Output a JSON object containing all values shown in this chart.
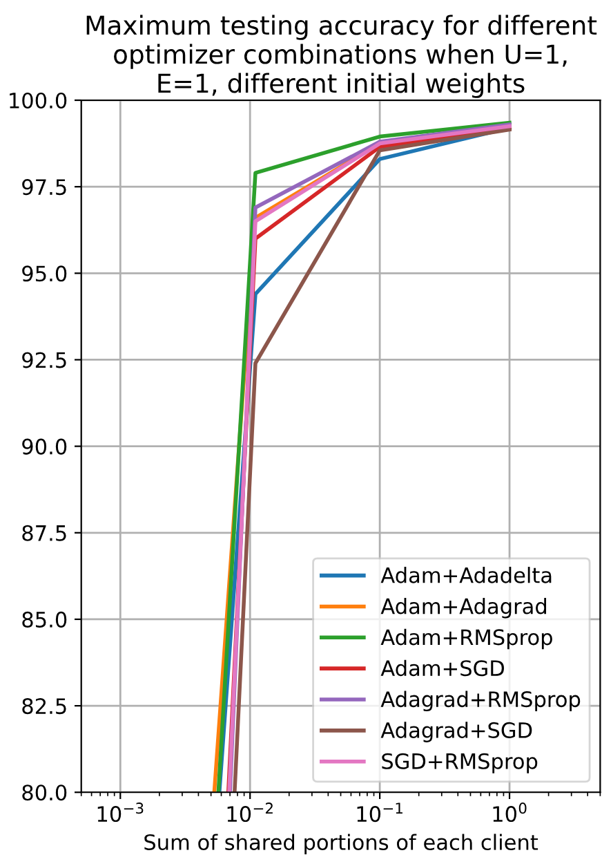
{
  "chart_data": {
    "type": "line",
    "title": "Maximum testing accuracy for different optimizer combinations when U=1, E=1, different initial weights",
    "xlabel": "Sum of shared portions of each client",
    "log": "x",
    "xlim": [
      0.0005,
      5
    ],
    "ylim": [
      80,
      100
    ],
    "xticks": [
      {
        "value": 0.001,
        "label": "10$^{−3}$"
      },
      {
        "value": 0.01,
        "label": "10$^{−2}$"
      },
      {
        "value": 0.1,
        "label": "10$^{−1}$"
      },
      {
        "value": 1,
        "label": "10$^{0}$"
      }
    ],
    "yticks": [
      {
        "value": 80,
        "label": "80.0"
      },
      {
        "value": 82.5,
        "label": "82.5"
      },
      {
        "value": 85,
        "label": "85.0"
      },
      {
        "value": 87.5,
        "label": "87.5"
      },
      {
        "value": 90,
        "label": "90.0"
      },
      {
        "value": 92.5,
        "label": "92.5"
      },
      {
        "value": 95,
        "label": "95.0"
      },
      {
        "value": 97.5,
        "label": "97.5"
      },
      {
        "value": 100,
        "label": "100.0"
      }
    ],
    "grid": true,
    "legend": "bottom right",
    "marker": "none",
    "line_style": "solid",
    "series": [
      {
        "name": "Adam+Adadelta",
        "color": "#1f77b4",
        "x": [
          0.0058,
          0.011,
          0.1,
          1
        ],
        "values": [
          80,
          94.4,
          98.3,
          99.2
        ]
      },
      {
        "name": "Adam+Adagrad",
        "color": "#ff7f0e",
        "x": [
          0.0053,
          0.011,
          0.1,
          1
        ],
        "values": [
          80,
          96.6,
          98.75,
          99.25
        ]
      },
      {
        "name": "Adam+RMSprop",
        "color": "#2ca02c",
        "x": [
          0.0057,
          0.011,
          0.1,
          1
        ],
        "values": [
          80,
          97.9,
          98.95,
          99.35
        ]
      },
      {
        "name": "Adam+SGD",
        "color": "#d62728",
        "x": [
          0.0068,
          0.011,
          0.1,
          1
        ],
        "values": [
          80,
          96.0,
          98.65,
          99.2
        ]
      },
      {
        "name": "Adagrad+RMSprop",
        "color": "#9467bd",
        "x": [
          0.007,
          0.011,
          0.1,
          1
        ],
        "values": [
          80,
          96.9,
          98.8,
          99.3
        ]
      },
      {
        "name": "Adagrad+SGD",
        "color": "#8c564b",
        "x": [
          0.0076,
          0.011,
          0.1,
          1
        ],
        "values": [
          80,
          92.4,
          98.55,
          99.15
        ]
      },
      {
        "name": "SGD+RMSprop",
        "color": "#e377c2",
        "x": [
          0.0069,
          0.011,
          0.1,
          1
        ],
        "values": [
          80,
          96.5,
          98.75,
          99.25
        ]
      }
    ]
  }
}
